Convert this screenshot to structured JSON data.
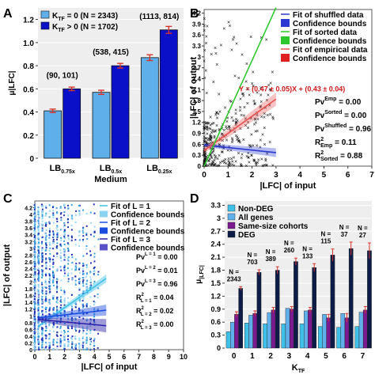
{
  "colors": {
    "light_blue": "#5fb0ea",
    "dark_blue": "#0a10c8",
    "err_red": "#d8342c",
    "green": "#2ec82e",
    "red_fit": "#e85050",
    "cyan": "#3ec0e8",
    "purple": "#7a1a8e",
    "navy": "#0c1c46",
    "panel_bg": "#eeeeee"
  },
  "chart_data": [
    {
      "panel": "A",
      "type": "bar",
      "ylabel": "μ|LFC|",
      "xlabel": "Medium",
      "ylim": [
        0,
        1.3
      ],
      "yticks": [
        "0",
        "0.2",
        "0.4",
        "0.6",
        "0.8",
        "1.0",
        "1.2"
      ],
      "categories": [
        "LB0.75x",
        "LB0.5x",
        "LB0.25x"
      ],
      "category_parts": [
        [
          "LB",
          "0.75x"
        ],
        [
          "LB",
          "0.5x"
        ],
        [
          "LB",
          "0.25x"
        ]
      ],
      "series": [
        {
          "name": "KTF = 0 (N = 2343)",
          "name_parts": [
            "K",
            "TF",
            " = 0 (N = 2343)"
          ],
          "values": [
            0.41,
            0.57,
            0.87
          ],
          "errors": [
            0.015,
            0.018,
            0.025
          ]
        },
        {
          "name": "KTF > 0 (N = 1702)",
          "name_parts": [
            "K",
            "TF",
            " > 0 (N = 1702)"
          ],
          "values": [
            0.6,
            0.8,
            1.11
          ],
          "errors": [
            0.015,
            0.02,
            0.03
          ]
        }
      ],
      "annotations": [
        "(90, 101)",
        "(538, 415)",
        "(1113, 814)"
      ],
      "legend": "top-left"
    },
    {
      "panel": "B",
      "type": "scatter",
      "ylabel": "|LFC| of output",
      "xlabel": "|LFC| of input",
      "xlim": [
        0,
        7
      ],
      "ylim": [
        0,
        4.3
      ],
      "xticks": [
        "0",
        "1",
        "2",
        "3",
        "4",
        "5",
        "6",
        "7"
      ],
      "yticks": [
        "0",
        "0.3",
        "0.6",
        "0.9",
        "1.2",
        "1.5",
        "1.8",
        "2.1",
        "2.4",
        "2.7",
        "3",
        "3.3",
        "3.6",
        "3.9",
        "4.2"
      ],
      "legend": [
        "Fit of shuffled data",
        "Confidence bounds",
        "Fit of sorted data",
        "Confidence bounds",
        "Fit of empirical data",
        "Confidence bounds"
      ],
      "fit_shuffled": {
        "slope": -0.07,
        "intercept": 0.58,
        "xmax": 3
      },
      "fit_sorted": {
        "slope": 1.45,
        "intercept": 0,
        "xmax": 3
      },
      "fit_empirical": {
        "slope": 0.47,
        "intercept": 0.43,
        "xmax": 3
      },
      "equation": "Y = (0.47 ± 0.05)X + (0.43 ± 0.04)",
      "stats": [
        {
          "base": "Pv",
          "sup": "Emp",
          "sub": "",
          "value": " = 0.00"
        },
        {
          "base": "Pv",
          "sup": "Sorted",
          "sub": "",
          "value": " = 0.00"
        },
        {
          "base": "Pv",
          "sup": "Shuffled",
          "sub": "",
          "value": " = 0.96"
        },
        {
          "base": "R",
          "sup": "2",
          "sub": "Emp",
          "value": " = 0.11"
        },
        {
          "base": "R",
          "sup": "2",
          "sub": "Sorted",
          "value": " = 0.88"
        }
      ]
    },
    {
      "panel": "C",
      "type": "scatter",
      "ylabel": "|LFC| of output",
      "xlabel": "|LFC| of input",
      "xlim": [
        0,
        10
      ],
      "ylim": [
        0,
        4.4
      ],
      "xticks": [
        "0",
        "1",
        "2",
        "3",
        "4",
        "5",
        "6",
        "7",
        "8",
        "9",
        "10"
      ],
      "yticks": [
        "0",
        "0.2",
        "0.4",
        "0.6",
        "0.8",
        "1",
        "1.2",
        "1.4",
        "1.6",
        "1.8",
        "2",
        "2.2",
        "2.4",
        "2.6",
        "2.8",
        "3",
        "3.2",
        "3.4",
        "3.6",
        "3.8",
        "4",
        "4.2"
      ],
      "legend": [
        "Fit of L = 1",
        "Confidence bounds",
        "Fit of L = 2",
        "Confidence bounds",
        "Fit of L = 3",
        "Confidence bounds"
      ],
      "fits": [
        {
          "slope": 0.31,
          "intercept": 0.62,
          "xmax": 4.8
        },
        {
          "slope": 0.05,
          "intercept": 0.93,
          "xmax": 4.8
        },
        {
          "slope": -0.04,
          "intercept": 0.9,
          "xmax": 4.8
        }
      ],
      "stats": [
        {
          "base": "Pv",
          "sup": "L = 1",
          "sub": "",
          "value": " = 0.00"
        },
        {
          "base": "Pv",
          "sup": "L = 2",
          "sub": "",
          "value": " = 0.01"
        },
        {
          "base": "Pv",
          "sup": "L = 3",
          "sub": "",
          "value": " = 0.96"
        },
        {
          "base": "R",
          "sup": "2",
          "sub": "L = 1",
          "value": " = 0.04"
        },
        {
          "base": "R",
          "sup": "2",
          "sub": "L = 2",
          "value": " = 0.02"
        },
        {
          "base": "R",
          "sup": "2",
          "sub": "L = 3",
          "value": " = 0.00"
        }
      ]
    },
    {
      "panel": "D",
      "type": "bar",
      "ylabel": "μ|LFC|",
      "ylabel_parts": [
        "μ",
        "|LFC|"
      ],
      "xlabel": "KTF",
      "xlabel_parts": [
        "K",
        "TF"
      ],
      "ylim": [
        0,
        3.4
      ],
      "yticks": [
        "0",
        "0.3",
        "0.6",
        "0.9",
        "1.2",
        "1.5",
        "1.8",
        "2.1",
        "2.4",
        "2.7",
        "3",
        "3.3"
      ],
      "categories": [
        "0",
        "1",
        "2",
        "3",
        "4",
        "5",
        "6",
        "7"
      ],
      "series": [
        {
          "name": "Non-DEG",
          "values": [
            0.38,
            0.58,
            0.56,
            0.56,
            0.56,
            0.5,
            0.48,
            0.5
          ]
        },
        {
          "name": "All genes",
          "values": [
            0.6,
            0.76,
            0.82,
            0.92,
            0.86,
            0.78,
            0.8,
            0.83
          ]
        },
        {
          "name": "Same-size cohorts",
          "values": [
            0.78,
            0.8,
            0.88,
            0.9,
            0.88,
            0.7,
            0.7,
            0.88
          ],
          "errors": [
            0.06,
            0.06,
            0.06,
            0.06,
            0.06,
            0.08,
            0.1,
            0.08
          ]
        },
        {
          "name": "DEG",
          "values": [
            1.38,
            1.75,
            1.8,
            2.0,
            1.86,
            2.15,
            2.3,
            2.25
          ],
          "errors": [
            0.04,
            0.06,
            0.08,
            0.08,
            0.09,
            0.14,
            0.15,
            0.18
          ]
        }
      ],
      "n_labels": [
        "N =\n2343",
        "N =\n703",
        "N =\n389",
        "N =\n260",
        "N =\n133",
        "N =\n115",
        "N =\n37",
        "N =\n27"
      ],
      "legend": "top-left"
    }
  ]
}
